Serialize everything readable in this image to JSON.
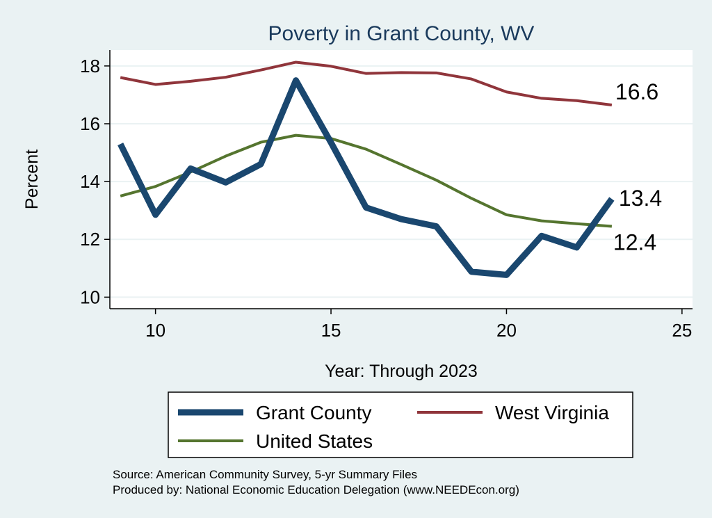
{
  "chart_data": {
    "type": "line",
    "title": "Poverty in Grant County, WV",
    "xlabel": "Year: Through 2023",
    "ylabel": "Percent",
    "xlim": [
      8.7,
      25.3
    ],
    "ylim": [
      9.6,
      18.55
    ],
    "xticks": [
      10,
      15,
      20,
      25
    ],
    "yticks": [
      10,
      12,
      14,
      16,
      18
    ],
    "grid": true,
    "legend_position": "bottom",
    "x": [
      9,
      10,
      11,
      12,
      13,
      14,
      15,
      16,
      17,
      18,
      19,
      20,
      21,
      22,
      23
    ],
    "series": [
      {
        "name": "Grant County",
        "color": "#1a476f",
        "values": [
          15.3,
          12.85,
          14.45,
          13.97,
          14.6,
          17.5,
          15.35,
          13.1,
          12.7,
          12.45,
          10.88,
          10.77,
          12.12,
          11.72,
          13.4
        ],
        "end_label": "13.4"
      },
      {
        "name": "West Virginia",
        "color": "#90353b",
        "values": [
          17.6,
          17.36,
          17.47,
          17.61,
          17.86,
          18.13,
          17.99,
          17.74,
          17.77,
          17.76,
          17.55,
          17.1,
          16.88,
          16.8,
          16.65
        ],
        "end_label": "16.6"
      },
      {
        "name": "United States",
        "color": "#55752f",
        "values": [
          13.5,
          13.83,
          14.33,
          14.88,
          15.36,
          15.6,
          15.49,
          15.12,
          14.59,
          14.05,
          13.42,
          12.85,
          12.64,
          12.54,
          12.45
        ],
        "end_label": "12.4"
      }
    ]
  },
  "notes": {
    "source": "Source: American Community Survey, 5-yr Summary Files",
    "produced": "Produced by: National Economic Education Delegation (www.NEEDEcon.org)"
  }
}
